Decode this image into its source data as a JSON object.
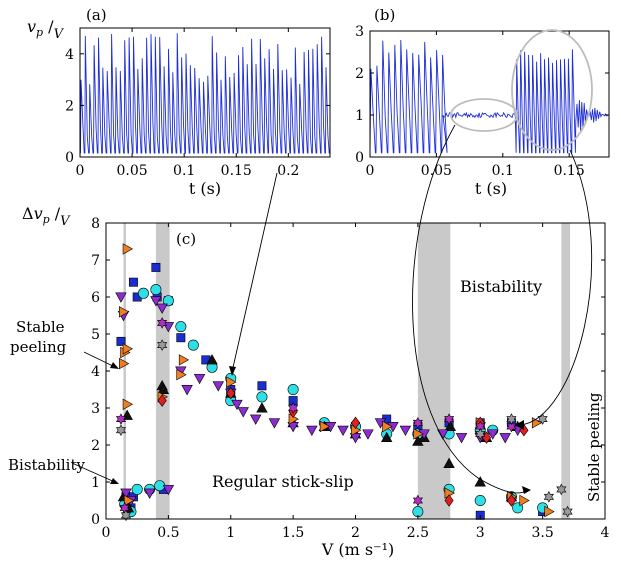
{
  "figure": {
    "panel_labels": [
      "(a)",
      "(b)",
      "(c)"
    ],
    "regions": [
      "Stable peeling",
      "Bistability",
      "Regular stick-slip",
      "Bistability",
      "Stable peeling"
    ]
  },
  "chart_data": [
    {
      "panel": "(a)",
      "type": "line",
      "xlabel": "t (s)",
      "ylabel": "v_p / V",
      "xlim": [
        0,
        0.24
      ],
      "ylim": [
        0,
        5
      ],
      "xticks": [
        "0",
        "0.05",
        "0.1",
        "0.15",
        "0.2"
      ],
      "yticks": [
        "0",
        "2",
        "4"
      ],
      "grid": false,
      "color": "#1f2fd8",
      "signal": {
        "baseline": 0.15,
        "peak_mean": 3.7,
        "peak_range": [
          2.8,
          4.8
        ],
        "period_s": 0.0042
      }
    },
    {
      "panel": "(b)",
      "type": "line",
      "xlabel": "t (s)",
      "ylabel": "",
      "xlim": [
        0,
        0.18
      ],
      "ylim": [
        0,
        3
      ],
      "xticks": [
        "0",
        "0.05",
        "0.1",
        "0.15"
      ],
      "yticks": [
        "0",
        "1",
        "2",
        "3"
      ],
      "grid": false,
      "color": "#1f2fd8",
      "signal": {
        "segments": [
          {
            "t": [
              0.0,
              0.055
            ],
            "regime": "stick-slip",
            "peak_range": [
              2.1,
              2.8
            ],
            "low": 0.1,
            "period_s": 0.0045
          },
          {
            "t": [
              0.055,
              0.11
            ],
            "regime": "stable",
            "level": 1.0,
            "noise": 0.06
          },
          {
            "t": [
              0.11,
              0.155
            ],
            "regime": "stick-slip",
            "peak_range": [
              2.2,
              2.6
            ],
            "low": 0.1,
            "period_s": 0.003
          },
          {
            "t": [
              0.155,
              0.18
            ],
            "regime": "decaying",
            "level": 1.0
          }
        ],
        "ellipse_regions_t": [
          [
            0.063,
            0.098
          ],
          [
            0.117,
            0.16
          ]
        ]
      }
    },
    {
      "panel": "(c)",
      "type": "scatter",
      "xlabel": "V (m s⁻¹)",
      "ylabel": "Δv_p / V",
      "xlim": [
        0,
        4
      ],
      "ylim": [
        0,
        8
      ],
      "xticks": [
        "0",
        "0.5",
        "1",
        "1.5",
        "2",
        "2.5",
        "3",
        "3.5",
        "4"
      ],
      "yticks": [
        "0",
        "1",
        "2",
        "3",
        "4",
        "5",
        "6",
        "7",
        "8"
      ],
      "grid": false,
      "legend": "none",
      "shaded_bands": [
        [
          0.14,
          0.16
        ],
        [
          0.4,
          0.51
        ],
        [
          2.5,
          2.76
        ],
        [
          3.65,
          3.72
        ]
      ],
      "annotations": [
        "Stable peeling",
        "Bistability",
        "Bistability",
        "Regular stick-slip",
        "Stable peeling"
      ],
      "series": [
        {
          "marker": "square",
          "color": "#1a2ecf",
          "points": [
            [
              0.12,
              4.8
            ],
            [
              0.16,
              0.6
            ],
            [
              0.2,
              0.3
            ],
            [
              0.22,
              6.4
            ],
            [
              0.22,
              0.6
            ],
            [
              0.25,
              6.0
            ],
            [
              0.4,
              6.8
            ],
            [
              0.41,
              6.0
            ],
            [
              0.46,
              0.8
            ],
            [
              0.5,
              5.9
            ],
            [
              0.6,
              4.9
            ],
            [
              0.8,
              4.3
            ],
            [
              1.0,
              3.5
            ],
            [
              1.0,
              3.3
            ],
            [
              1.25,
              3.6
            ],
            [
              1.5,
              3.2
            ],
            [
              2.0,
              2.5
            ],
            [
              2.25,
              2.7
            ],
            [
              2.5,
              2.5
            ],
            [
              2.75,
              2.6
            ],
            [
              3.0,
              2.6
            ],
            [
              3.0,
              0.1
            ],
            [
              3.25,
              2.6
            ],
            [
              3.5,
              0.2
            ]
          ]
        },
        {
          "marker": "circle",
          "color": "#2ee0e6",
          "points": [
            [
              0.15,
              0.4
            ],
            [
              0.2,
              0.2
            ],
            [
              0.25,
              0.8
            ],
            [
              0.3,
              6.1
            ],
            [
              0.35,
              0.8
            ],
            [
              0.4,
              6.2
            ],
            [
              0.43,
              0.9
            ],
            [
              0.5,
              5.9
            ],
            [
              0.6,
              5.2
            ],
            [
              0.7,
              4.7
            ],
            [
              0.85,
              4.1
            ],
            [
              1.0,
              3.8
            ],
            [
              1.0,
              3.2
            ],
            [
              1.25,
              3.3
            ],
            [
              1.5,
              3.5
            ],
            [
              1.75,
              2.6
            ],
            [
              2.0,
              2.5
            ],
            [
              2.25,
              2.3
            ],
            [
              2.5,
              2.3
            ],
            [
              2.5,
              0.2
            ],
            [
              2.75,
              2.3
            ],
            [
              2.75,
              0.8
            ],
            [
              3.0,
              2.4
            ],
            [
              3.0,
              0.5
            ],
            [
              3.1,
              2.4
            ],
            [
              3.25,
              0.6
            ],
            [
              3.3,
              0.3
            ],
            [
              3.5,
              0.3
            ]
          ]
        },
        {
          "marker": "triangle-up",
          "color": "#111111",
          "points": [
            [
              0.14,
              0.6
            ],
            [
              0.17,
              2.8
            ],
            [
              0.18,
              0.3
            ],
            [
              0.45,
              3.6
            ],
            [
              0.46,
              3.5
            ],
            [
              0.85,
              4.3
            ],
            [
              1.0,
              3.4
            ],
            [
              1.25,
              3.0
            ],
            [
              1.5,
              2.6
            ],
            [
              1.75,
              2.5
            ],
            [
              2.0,
              2.3
            ],
            [
              2.25,
              2.2
            ],
            [
              2.5,
              2.1
            ],
            [
              2.55,
              2.2
            ],
            [
              2.75,
              1.5
            ],
            [
              2.76,
              2.5
            ],
            [
              3.0,
              1.0
            ],
            [
              3.05,
              2.2
            ],
            [
              3.25,
              0.6
            ],
            [
              3.3,
              2.5
            ]
          ]
        },
        {
          "marker": "triangle-down",
          "color": "#8b2bd0",
          "points": [
            [
              0.12,
              6.0
            ],
            [
              0.14,
              5.5
            ],
            [
              0.16,
              0.7
            ],
            [
              0.2,
              0.5
            ],
            [
              0.35,
              0.7
            ],
            [
              0.4,
              5.9
            ],
            [
              0.45,
              5.7
            ],
            [
              0.5,
              0.8
            ],
            [
              0.5,
              5.2
            ],
            [
              0.6,
              4.0
            ],
            [
              0.65,
              3.5
            ],
            [
              0.75,
              3.8
            ],
            [
              0.9,
              3.6
            ],
            [
              1.0,
              3.4
            ],
            [
              1.05,
              3.1
            ],
            [
              1.1,
              2.9
            ],
            [
              1.2,
              2.7
            ],
            [
              1.35,
              2.6
            ],
            [
              1.5,
              2.5
            ],
            [
              1.65,
              2.4
            ],
            [
              1.8,
              2.5
            ],
            [
              1.9,
              2.4
            ],
            [
              2.0,
              2.2
            ],
            [
              2.1,
              2.3
            ],
            [
              2.2,
              2.6
            ],
            [
              2.3,
              2.5
            ],
            [
              2.4,
              2.4
            ],
            [
              2.55,
              2.3
            ],
            [
              2.7,
              2.3
            ],
            [
              2.85,
              2.2
            ],
            [
              3.0,
              2.2
            ],
            [
              3.1,
              2.3
            ],
            [
              3.2,
              2.2
            ],
            [
              3.3,
              2.4
            ]
          ]
        },
        {
          "marker": "triangle-right",
          "color": "#ef7d21",
          "points": [
            [
              0.14,
              4.2
            ],
            [
              0.14,
              5.6
            ],
            [
              0.15,
              4.5
            ],
            [
              0.17,
              7.3
            ],
            [
              0.17,
              4.6
            ],
            [
              0.17,
              3.1
            ],
            [
              0.18,
              0.5
            ],
            [
              0.45,
              3.3
            ],
            [
              0.6,
              3.9
            ],
            [
              0.62,
              4.3
            ],
            [
              1.0,
              3.7
            ],
            [
              1.5,
              2.7
            ],
            [
              1.75,
              2.5
            ],
            [
              2.0,
              2.4
            ],
            [
              2.25,
              2.5
            ],
            [
              2.5,
              2.3
            ],
            [
              2.75,
              0.7
            ],
            [
              3.0,
              2.6
            ],
            [
              3.25,
              0.6
            ],
            [
              3.35,
              0.5
            ],
            [
              3.45,
              2.6
            ],
            [
              3.55,
              0.2
            ]
          ]
        },
        {
          "marker": "diamond",
          "color": "#e02020",
          "points": [
            [
              0.45,
              3.2
            ],
            [
              1.0,
              3.4
            ],
            [
              1.5,
              2.9
            ],
            [
              2.0,
              2.6
            ],
            [
              2.75,
              0.5
            ],
            [
              3.0,
              2.6
            ],
            [
              3.05,
              2.2
            ],
            [
              3.25,
              0.5
            ],
            [
              3.35,
              2.4
            ]
          ]
        },
        {
          "marker": "star",
          "color": "#b02fc0",
          "points": [
            [
              0.12,
              2.7
            ],
            [
              0.15,
              0.3
            ],
            [
              0.45,
              5.3
            ],
            [
              1.5,
              3.0
            ],
            [
              2.5,
              0.5
            ],
            [
              2.5,
              2.6
            ],
            [
              2.75,
              2.7
            ],
            [
              3.0,
              2.5
            ],
            [
              3.25,
              2.5
            ]
          ]
        },
        {
          "marker": "star",
          "color": "#9a9a9a",
          "points": [
            [
              0.12,
              2.4
            ],
            [
              0.16,
              0.1
            ],
            [
              0.45,
              4.7
            ],
            [
              3.0,
              2.3
            ],
            [
              3.25,
              2.7
            ],
            [
              3.5,
              2.7
            ],
            [
              3.55,
              0.6
            ],
            [
              3.65,
              0.8
            ],
            [
              3.7,
              0.2
            ]
          ]
        }
      ]
    }
  ]
}
